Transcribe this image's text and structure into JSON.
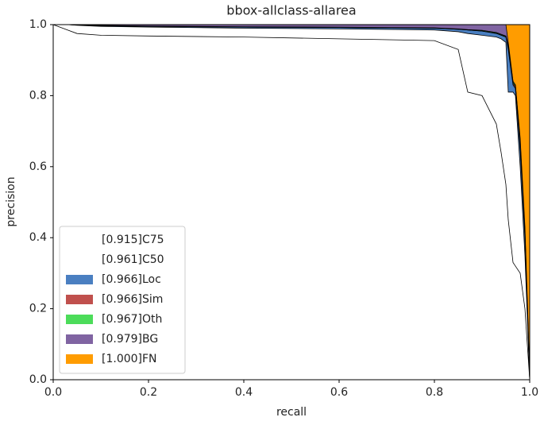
{
  "chart_data": {
    "type": "area",
    "title": "bbox-allclass-allarea",
    "x_label": "recall",
    "y_label": "precision",
    "x": [
      0,
      0.03,
      0.05,
      0.1,
      0.2,
      0.4,
      0.6,
      0.8,
      0.85,
      0.87,
      0.9,
      0.93,
      0.94,
      0.95,
      0.955,
      0.965,
      0.97,
      0.98,
      0.99,
      1.0
    ],
    "series": [
      {
        "name": "[0.915]C75",
        "color": "#ffffff",
        "values": [
          1.0,
          0.985,
          0.975,
          0.97,
          0.968,
          0.965,
          0.96,
          0.955,
          0.93,
          0.81,
          0.8,
          0.72,
          0.64,
          0.55,
          0.45,
          0.33,
          0.32,
          0.3,
          0.2,
          0.0
        ]
      },
      {
        "name": "[0.961]C50",
        "color": "#ffffff",
        "values": [
          1.0,
          1.0,
          0.998,
          0.995,
          0.993,
          0.99,
          0.988,
          0.985,
          0.98,
          0.975,
          0.97,
          0.965,
          0.96,
          0.95,
          0.81,
          0.81,
          0.8,
          0.6,
          0.35,
          0.0
        ]
      },
      {
        "name": "[0.966]Loc",
        "color": "#4a7fc1",
        "values": [
          1.0,
          1.0,
          0.999,
          0.997,
          0.995,
          0.993,
          0.992,
          0.99,
          0.987,
          0.985,
          0.982,
          0.975,
          0.97,
          0.965,
          0.93,
          0.83,
          0.82,
          0.65,
          0.4,
          0.0
        ]
      },
      {
        "name": "[0.966]Sim",
        "color": "#c0504d",
        "values": [
          1.0,
          1.0,
          0.999,
          0.997,
          0.995,
          0.993,
          0.992,
          0.99,
          0.987,
          0.985,
          0.982,
          0.976,
          0.971,
          0.966,
          0.935,
          0.835,
          0.825,
          0.66,
          0.41,
          0.0
        ]
      },
      {
        "name": "[0.967]Oth",
        "color": "#4cdc5a",
        "values": [
          1.0,
          1.0,
          0.999,
          0.998,
          0.996,
          0.994,
          0.993,
          0.991,
          0.988,
          0.986,
          0.984,
          0.978,
          0.973,
          0.968,
          0.94,
          0.84,
          0.83,
          0.67,
          0.42,
          0.01
        ]
      },
      {
        "name": "[0.979]BG",
        "color": "#8064a2",
        "values": [
          1.0,
          1.0,
          1.0,
          1.0,
          1.0,
          1.0,
          1.0,
          1.0,
          1.0,
          1.0,
          1.0,
          1.0,
          1.0,
          1.0,
          0.95,
          0.84,
          0.83,
          0.68,
          0.43,
          0.02
        ]
      },
      {
        "name": "[1.000]FN",
        "color": "#ff9c00",
        "values": [
          1.0,
          1.0,
          1.0,
          1.0,
          1.0,
          1.0,
          1.0,
          1.0,
          1.0,
          1.0,
          1.0,
          1.0,
          1.0,
          1.0,
          1.0,
          1.0,
          1.0,
          1.0,
          1.0,
          1.0
        ]
      }
    ],
    "xlim": [
      0,
      1
    ],
    "ylim": [
      0,
      1
    ],
    "xticks": [
      {
        "value": 0,
        "label": "0.0"
      },
      {
        "value": 0.2,
        "label": "0.2"
      },
      {
        "value": 0.4,
        "label": "0.4"
      },
      {
        "value": 0.6,
        "label": "0.6"
      },
      {
        "value": 0.8,
        "label": "0.8"
      },
      {
        "value": 1,
        "label": "1.0"
      }
    ],
    "yticks": [
      {
        "value": 0,
        "label": "0.0"
      },
      {
        "value": 0.2,
        "label": "0.2"
      },
      {
        "value": 0.4,
        "label": "0.4"
      },
      {
        "value": 0.6,
        "label": "0.6"
      },
      {
        "value": 0.8,
        "label": "0.8"
      },
      {
        "value": 1,
        "label": "1.0"
      }
    ],
    "legend": "lower left"
  }
}
